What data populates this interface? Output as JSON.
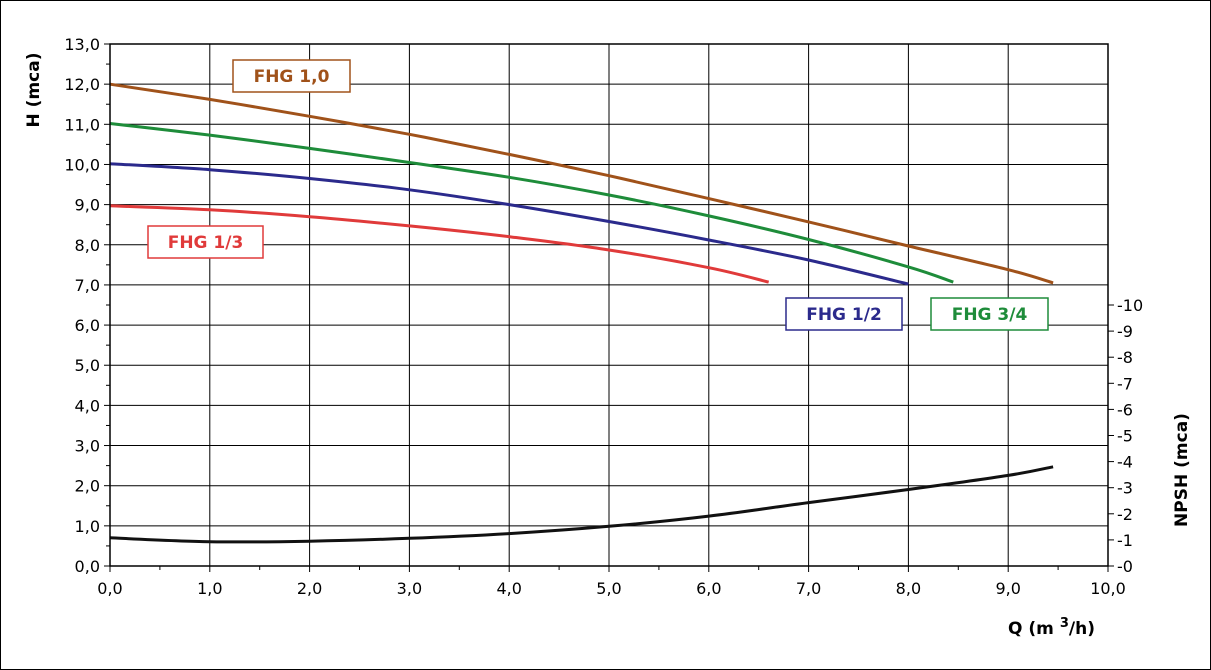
{
  "chart_data": {
    "type": "line",
    "xlabel": "Q (m",
    "xlabel_sup": "3",
    "xlabel_tail": "/h)",
    "ylabel": "H (mca)",
    "y2label": "NPSH (mca)",
    "xlim": [
      0,
      10
    ],
    "ylim": [
      0,
      13
    ],
    "y2lim": [
      0,
      10
    ],
    "grid": true,
    "x_tick_labels": [
      "0,0",
      "1,0",
      "2,0",
      "3,0",
      "4,0",
      "5,0",
      "6,0",
      "7,0",
      "8,0",
      "9,0",
      "10,0"
    ],
    "y_tick_labels": [
      "0,0",
      "1,0",
      "2,0",
      "3,0",
      "4,0",
      "5,0",
      "6,0",
      "7,0",
      "8,0",
      "9,0",
      "10,0",
      "11,0",
      "12,0",
      "13,0"
    ],
    "y2_tick_labels": [
      "-0",
      "-1",
      "-2",
      "-3",
      "-4",
      "-5",
      "-6",
      "-7",
      "-8",
      "-9",
      "-10"
    ],
    "colors": {
      "fhg_1_0": "#a0521a",
      "fhg_3_4": "#1e8c3a",
      "fhg_1_2": "#2b2a8c",
      "fhg_1_3": "#e03a3a",
      "npsh": "#111111"
    },
    "series": [
      {
        "key": "fhg_1_0",
        "name": "FHG 1,0",
        "x": [
          0,
          1,
          2,
          3,
          4,
          5,
          6,
          7,
          8,
          9,
          9.45
        ],
        "y": [
          12.0,
          11.62,
          11.2,
          10.75,
          10.25,
          9.72,
          9.15,
          8.57,
          7.97,
          7.38,
          7.05
        ]
      },
      {
        "key": "fhg_3_4",
        "name": "FHG 3/4",
        "x": [
          0,
          1,
          2,
          3,
          4,
          5,
          6,
          7,
          8,
          8.45
        ],
        "y": [
          11.02,
          10.73,
          10.4,
          10.05,
          9.68,
          9.24,
          8.72,
          8.13,
          7.45,
          7.07
        ]
      },
      {
        "key": "fhg_1_2",
        "name": "FHG 1/2",
        "x": [
          0,
          1,
          2,
          3,
          4,
          5,
          6,
          7,
          8
        ],
        "y": [
          10.02,
          9.87,
          9.65,
          9.37,
          9.0,
          8.58,
          8.12,
          7.62,
          7.02
        ]
      },
      {
        "key": "fhg_1_3",
        "name": "FHG 1/3",
        "x": [
          0,
          1,
          2,
          3,
          4,
          5,
          6,
          6.6
        ],
        "y": [
          8.97,
          8.87,
          8.7,
          8.47,
          8.2,
          7.87,
          7.43,
          7.07
        ]
      },
      {
        "key": "npsh",
        "name": "NPSH",
        "axis": "y2",
        "x": [
          0,
          1,
          2,
          3,
          4,
          5,
          6,
          7,
          8,
          9,
          9.45
        ],
        "y": [
          1.08,
          0.93,
          0.95,
          1.06,
          1.24,
          1.52,
          1.91,
          2.43,
          2.93,
          3.47,
          3.8
        ]
      }
    ],
    "labels": {
      "fhg_1_0": "FHG 1,0",
      "fhg_3_4": "FHG 3/4",
      "fhg_1_2": "FHG 1/2",
      "fhg_1_3": "FHG 1/3"
    }
  }
}
